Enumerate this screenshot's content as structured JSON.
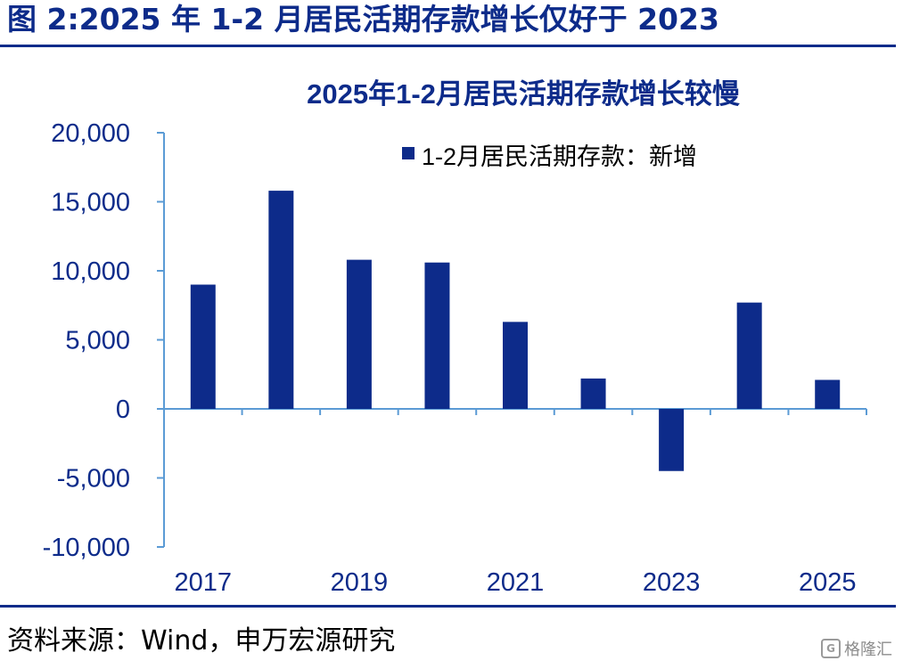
{
  "figure_title": "图 2:2025 年 1-2 月居民活期存款增长仅好于 2023",
  "source_note": "资料来源：Wind，申万宏源研究",
  "watermark": {
    "text": "格隆汇",
    "icon": "gelonghui-logo-icon"
  },
  "colors": {
    "bar": "#0d2b8a",
    "axis": "#5b9bd5",
    "title": "#0d2b8a",
    "rule": "#0d2b8a"
  },
  "chart_data": {
    "type": "bar",
    "title": "2025年1-2月居民活期存款增长较慢",
    "legend_position": "top-right",
    "grid": false,
    "ylim": [
      -10000,
      20000
    ],
    "yticks": [
      20000,
      15000,
      10000,
      5000,
      0,
      -5000,
      -10000
    ],
    "ytick_labels": [
      "20,000",
      "15,000",
      "10,000",
      "5,000",
      "0",
      "-5,000",
      "-10,000"
    ],
    "categories": [
      "2017",
      "2018",
      "2019",
      "2020",
      "2021",
      "2022",
      "2023",
      "2024",
      "2025"
    ],
    "xtick_labels": [
      "2017",
      "",
      "2019",
      "",
      "2021",
      "",
      "2023",
      "",
      "2025"
    ],
    "series": [
      {
        "name": "1-2月居民活期存款：新增",
        "values": [
          9000,
          15800,
          10800,
          10600,
          6300,
          2200,
          -4500,
          7700,
          2100
        ]
      }
    ]
  }
}
